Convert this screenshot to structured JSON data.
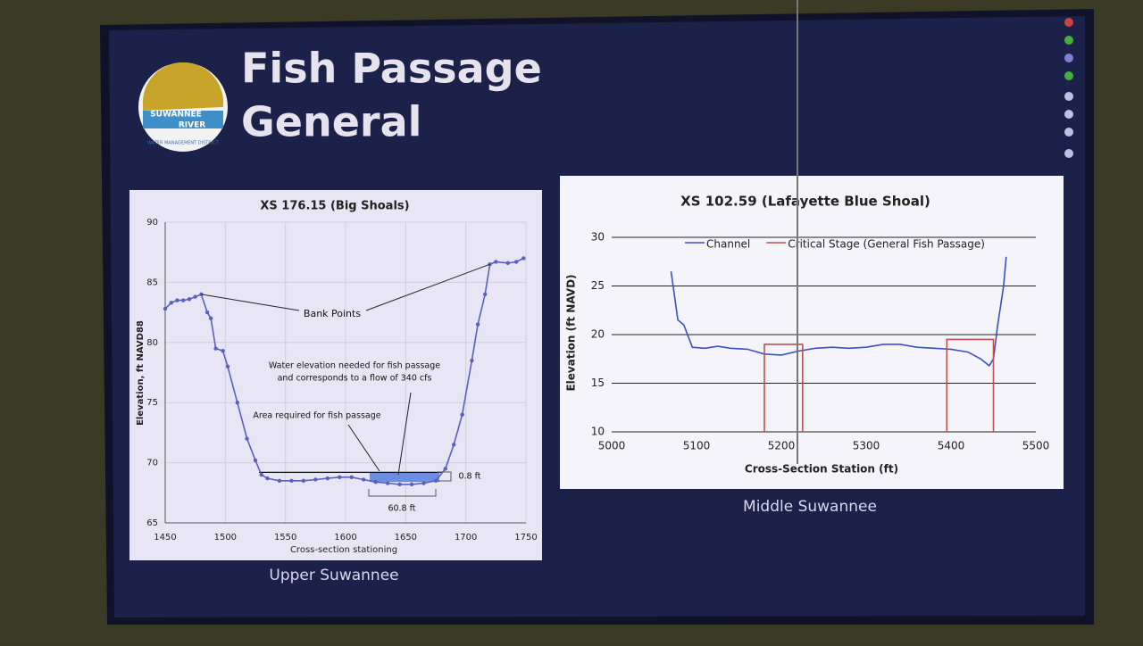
{
  "slide": {
    "title_lines": [
      "Fish Passage",
      "General"
    ],
    "logo_lines": [
      "SUWANNEE",
      "RIVER",
      "WATER MANAGEMENT DISTRICT"
    ]
  },
  "chart_data": [
    {
      "type": "line",
      "title": "XS 176.15 (Big Shoals)",
      "caption": "Upper Suwannee",
      "x_label": "Cross-section stationing",
      "y_label": "Elevation, ft NAVD88",
      "xlim": [
        1450,
        1750
      ],
      "xticks": [
        1450,
        1500,
        1550,
        1600,
        1650,
        1700,
        1750
      ],
      "ylim": [
        65,
        90
      ],
      "yticks": [
        65,
        70,
        75,
        80,
        85,
        90
      ],
      "grid": "both",
      "markers": true,
      "series": [
        {
          "color": "#5a5fc0",
          "x": [
            1450,
            1455,
            1460,
            1465,
            1470,
            1475,
            1480,
            1485,
            1488,
            1492,
            1498,
            1502,
            1510,
            1518,
            1525,
            1530,
            1535,
            1545,
            1555,
            1565,
            1575,
            1585,
            1595,
            1605,
            1615,
            1625,
            1635,
            1645,
            1655,
            1665,
            1675,
            1683,
            1690,
            1697,
            1705,
            1710,
            1716,
            1720,
            1725,
            1735,
            1742,
            1748
          ],
          "values": [
            82.8,
            83.3,
            83.5,
            83.5,
            83.6,
            83.8,
            84,
            82.5,
            82,
            79.5,
            79.3,
            78,
            75,
            72,
            70.2,
            69,
            68.7,
            68.5,
            68.5,
            68.5,
            68.6,
            68.7,
            68.8,
            68.8,
            68.6,
            68.4,
            68.3,
            68.2,
            68.2,
            68.3,
            68.5,
            69.5,
            71.5,
            74,
            78.5,
            81.5,
            84,
            86.5,
            86.7,
            86.6,
            86.7,
            87
          ]
        }
      ],
      "water_level": {
        "value": 69.2,
        "x": [
          1528,
          1680
        ]
      },
      "passage_area": {
        "x": [
          1620,
          1678
        ],
        "y": [
          68.4,
          69.2
        ],
        "color": "#6a8fe0"
      },
      "annotations": [
        [
          "Bank Points"
        ],
        [
          "Water elevation needed for fish passage",
          "and corresponds to a flow of 340 cfs"
        ],
        [
          "Area required for fish passage"
        ],
        [
          "0.8 ft"
        ],
        [
          "60.8 ft"
        ]
      ]
    },
    {
      "type": "line",
      "title": "XS 102.59 (Lafayette Blue Shoal)",
      "caption": "Middle Suwannee",
      "x_label": "Cross-Section Station (ft)",
      "y_label": "Elevation (ft NAVD)",
      "xlim": [
        5000,
        5500
      ],
      "xticks": [
        5000,
        5100,
        5200,
        5300,
        5400,
        5500
      ],
      "ylim": [
        10,
        30
      ],
      "yticks": [
        10,
        15,
        20,
        25,
        30
      ],
      "grid": "y",
      "markers": false,
      "legend": "top",
      "series": [
        {
          "name": "Channel",
          "color": "#3b4fc8",
          "x": [
            5070,
            5078,
            5085,
            5095,
            5110,
            5125,
            5140,
            5160,
            5180,
            5200,
            5220,
            5240,
            5260,
            5280,
            5300,
            5320,
            5340,
            5360,
            5380,
            5400,
            5420,
            5435,
            5445,
            5450,
            5455,
            5462,
            5465
          ],
          "values": [
            26.5,
            21.5,
            21,
            18.7,
            18.6,
            18.8,
            18.6,
            18.5,
            18,
            17.9,
            18.3,
            18.6,
            18.7,
            18.6,
            18.7,
            19,
            19,
            18.7,
            18.6,
            18.5,
            18.2,
            17.5,
            16.8,
            17.5,
            21,
            25,
            28
          ]
        },
        {
          "name": "Critical Stage (General Fish Passage)",
          "color": "#c0504d",
          "x": [
            5180,
            5180,
            5225,
            5225,
            null,
            5395,
            5395,
            5450,
            5450
          ],
          "values": [
            10,
            19,
            19,
            10,
            null,
            10,
            19.5,
            19.5,
            10
          ]
        }
      ]
    }
  ]
}
